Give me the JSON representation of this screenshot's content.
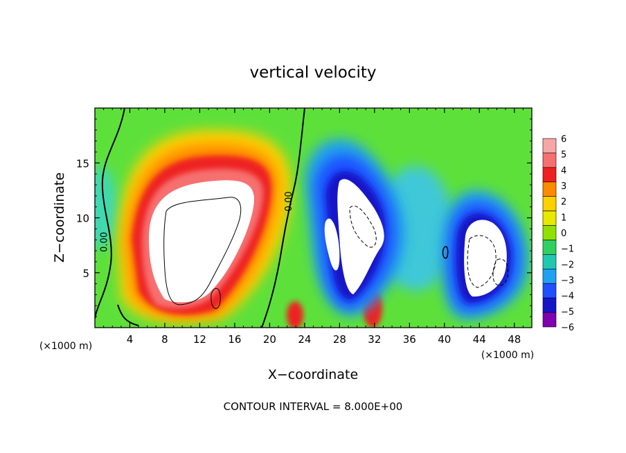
{
  "chart_data": {
    "type": "heatmap",
    "title": "vertical velocity",
    "xlabel": "X−coordinate",
    "ylabel": "Z−coordinate",
    "x_unit_left": "(×1000 m)",
    "x_unit_right": "(×1000 m)",
    "footer": "CONTOUR INTERVAL = 8.000E+00",
    "xlim": [
      0,
      50
    ],
    "ylim": [
      0,
      20
    ],
    "x_ticks": [
      4,
      8,
      12,
      16,
      20,
      24,
      28,
      32,
      36,
      40,
      44,
      48
    ],
    "y_ticks": [
      5,
      10,
      15
    ],
    "contour_labels": [
      {
        "text": "0.00",
        "x": 1.4,
        "y": 7.8,
        "rotate": -90
      },
      {
        "text": "0.00",
        "x": 22.5,
        "y": 11.5,
        "rotate": -90
      }
    ],
    "colorbar": {
      "levels": [
        6,
        5,
        4,
        3,
        2,
        1,
        0,
        -1,
        -2,
        -3,
        -4,
        -5,
        -6
      ],
      "labels": [
        "6",
        "5",
        "4",
        "3",
        "2",
        "1",
        "0",
        "−1",
        "−2",
        "−3",
        "−4",
        "−5",
        "−6"
      ],
      "colors": [
        "#f7a6a6",
        "#f77070",
        "#ee2020",
        "#ff8a00",
        "#ffd000",
        "#e8e800",
        "#90e000",
        "#30d060",
        "#20c8b0",
        "#20a0f0",
        "#1f4fff",
        "#1515c8",
        "#8000b0"
      ]
    },
    "features": [
      {
        "kind": "updraft",
        "cx": 13.5,
        "cy": 9.0,
        "rx": 8.5,
        "ry": 9.0,
        "peak": 8
      },
      {
        "kind": "updraft",
        "cx": 22.8,
        "cy": 1.2,
        "rx": 1.0,
        "ry": 1.4,
        "peak": 4.5
      },
      {
        "kind": "updraft",
        "cx": 31.8,
        "cy": 1.6,
        "rx": 1.2,
        "ry": 2.0,
        "peak": 5
      },
      {
        "kind": "downdraft",
        "cx": 30.0,
        "cy": 8.0,
        "rx": 5.2,
        "ry": 8.5,
        "peak": -8
      },
      {
        "kind": "downdraft",
        "cx": 44.5,
        "cy": 6.5,
        "rx": 4.6,
        "ry": 6.5,
        "peak": -8
      }
    ]
  }
}
